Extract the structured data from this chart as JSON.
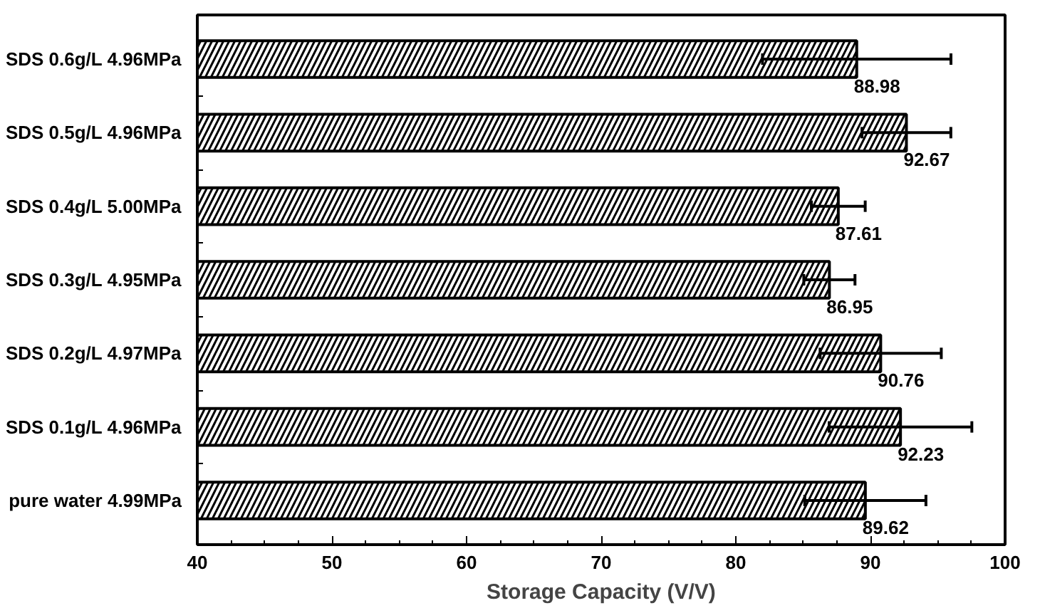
{
  "chart_data": {
    "type": "bar",
    "orientation": "horizontal",
    "xlabel": "Storage Capacity (V/V)",
    "categories": [
      "SDS 0.6g/L 4.96MPa",
      "SDS 0.5g/L 4.96MPa",
      "SDS 0.4g/L 5.00MPa",
      "SDS 0.3g/L 4.95MPa",
      "SDS 0.2g/L 4.97MPa",
      "SDS 0.1g/L 4.96MPa",
      "pure water 4.99MPa"
    ],
    "values": [
      88.98,
      92.67,
      87.61,
      86.95,
      90.76,
      92.23,
      89.62
    ],
    "errors": [
      7,
      3.3,
      2,
      1.9,
      4.5,
      5.3,
      4.5
    ],
    "color": "#ffffff",
    "data_labels": true,
    "xlim": [
      40,
      100
    ],
    "xticks": [
      40,
      50,
      60,
      70,
      80,
      90,
      100
    ],
    "grid": false
  }
}
